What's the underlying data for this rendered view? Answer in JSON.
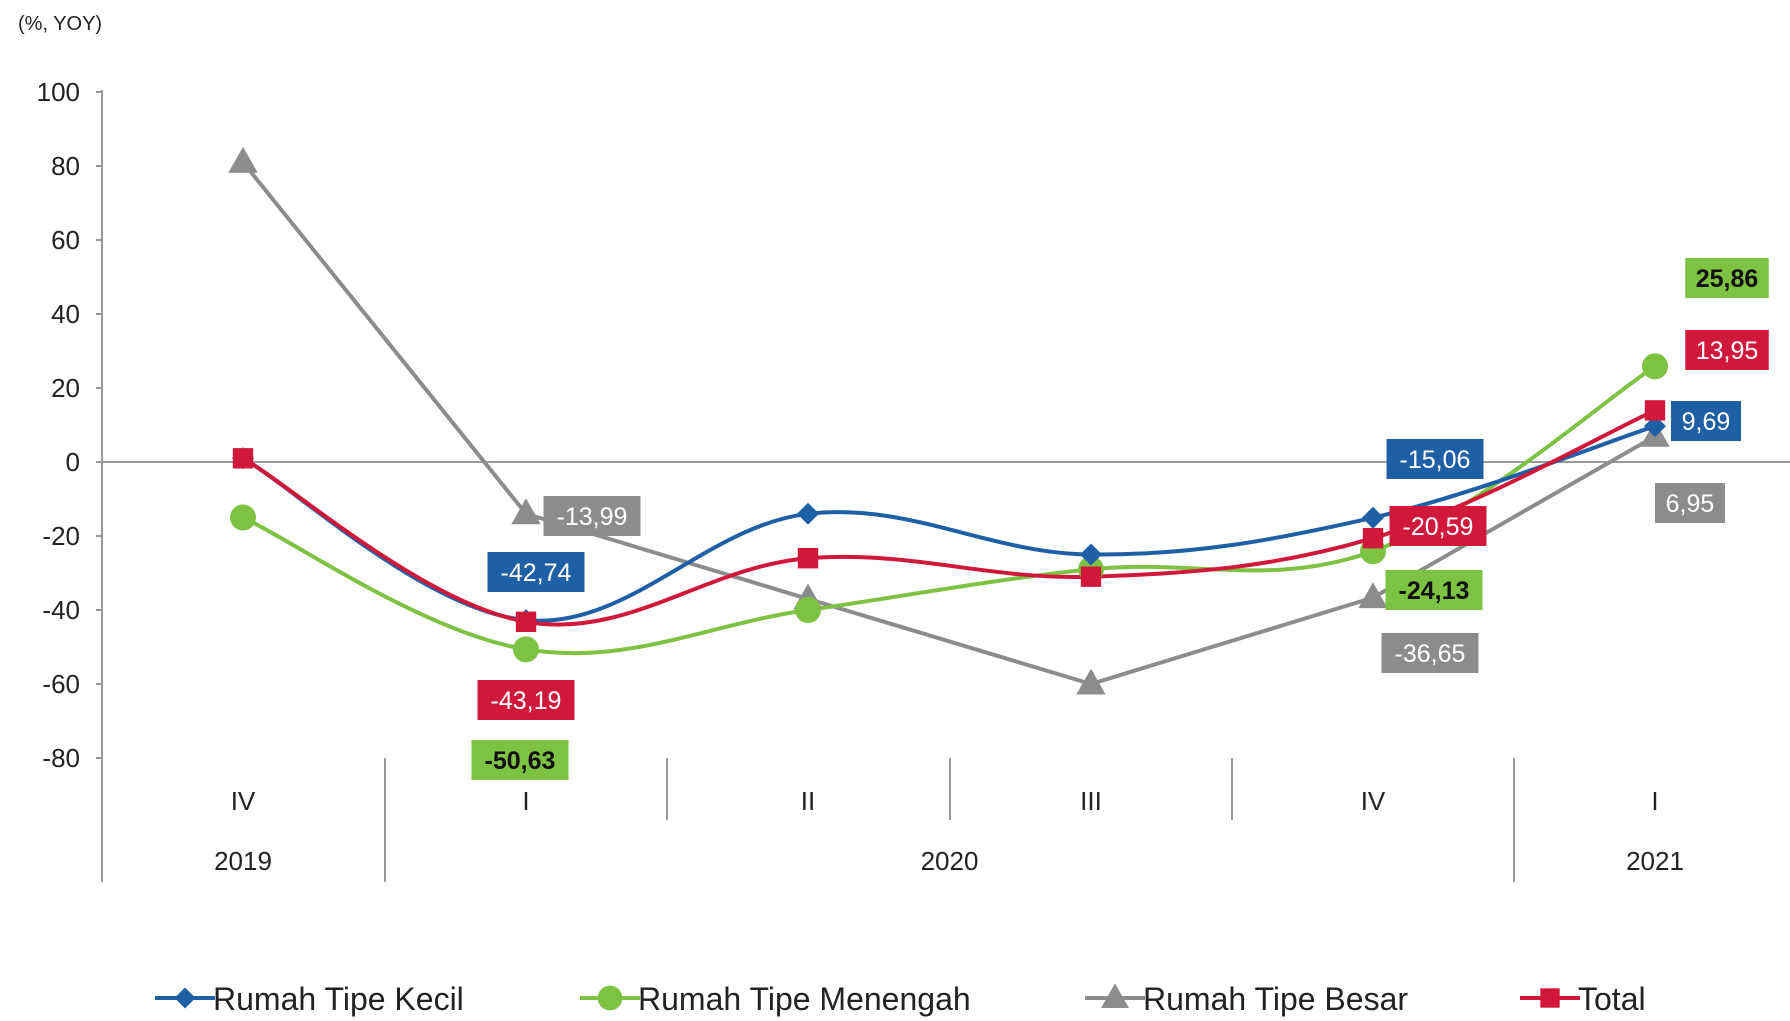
{
  "chart_data": {
    "type": "line",
    "unit_label": "(%, YOY)",
    "categories": [
      "IV",
      "I",
      "II",
      "III",
      "IV",
      "I"
    ],
    "years": [
      {
        "label": "2019",
        "span": [
          0,
          0
        ]
      },
      {
        "label": "2020",
        "span": [
          1,
          4
        ]
      },
      {
        "label": "2021",
        "span": [
          5,
          5
        ]
      }
    ],
    "ylim": [
      -80,
      100
    ],
    "yticks": [
      100,
      80,
      60,
      40,
      20,
      0,
      -20,
      -40,
      -60,
      -80
    ],
    "ytick_labels": [
      "100",
      "80",
      "60",
      "40",
      "20",
      "0",
      "-20",
      "-40",
      "-60",
      "-80"
    ],
    "grid": false,
    "legend_position": "bottom",
    "series": [
      {
        "name": "Rumah Tipe Kecil",
        "color": "#1f5fa6",
        "marker": "diamond",
        "values": [
          1,
          -42.74,
          -14,
          -25,
          -15.06,
          9.69
        ],
        "labels": [
          {
            "index": 1,
            "text": "-42,74",
            "bg": "#1f5fa6",
            "fg": "#ffffff"
          },
          {
            "index": 4,
            "text": "-15,06",
            "bg": "#1f5fa6",
            "fg": "#ffffff"
          },
          {
            "index": 5,
            "text": "9,69",
            "bg": "#1f5fa6",
            "fg": "#ffffff"
          }
        ]
      },
      {
        "name": "Rumah Tipe Menengah",
        "color": "#7dc243",
        "marker": "circle",
        "values": [
          -15,
          -50.63,
          -40,
          -29,
          -24.13,
          25.86
        ],
        "labels": [
          {
            "index": 1,
            "text": "-50,63",
            "bg": "#7dc243",
            "fg": "#111111"
          },
          {
            "index": 4,
            "text": "-24,13",
            "bg": "#7dc243",
            "fg": "#111111"
          },
          {
            "index": 5,
            "text": "25,86",
            "bg": "#7dc243",
            "fg": "#111111"
          }
        ]
      },
      {
        "name": "Rumah Tipe Besar",
        "color": "#8c8c8c",
        "marker": "triangle",
        "values": [
          81,
          -13.99,
          -37,
          -60,
          -36.65,
          6.95
        ],
        "labels": [
          {
            "index": 1,
            "text": "-13,99",
            "bg": "#8c8c8c",
            "fg": "#ffffff"
          },
          {
            "index": 4,
            "text": "-36,65",
            "bg": "#8c8c8c",
            "fg": "#ffffff"
          },
          {
            "index": 5,
            "text": "6,95",
            "bg": "#8c8c8c",
            "fg": "#ffffff"
          }
        ]
      },
      {
        "name": "Total",
        "color": "#d0193a",
        "marker": "square",
        "values": [
          1,
          -43.19,
          -26,
          -31,
          -20.59,
          13.95
        ],
        "labels": [
          {
            "index": 1,
            "text": "-43,19",
            "bg": "#d0193a",
            "fg": "#ffffff"
          },
          {
            "index": 4,
            "text": "-20,59",
            "bg": "#d0193a",
            "fg": "#ffffff"
          },
          {
            "index": 5,
            "text": "13,95",
            "bg": "#d0193a",
            "fg": "#ffffff"
          }
        ]
      }
    ]
  }
}
